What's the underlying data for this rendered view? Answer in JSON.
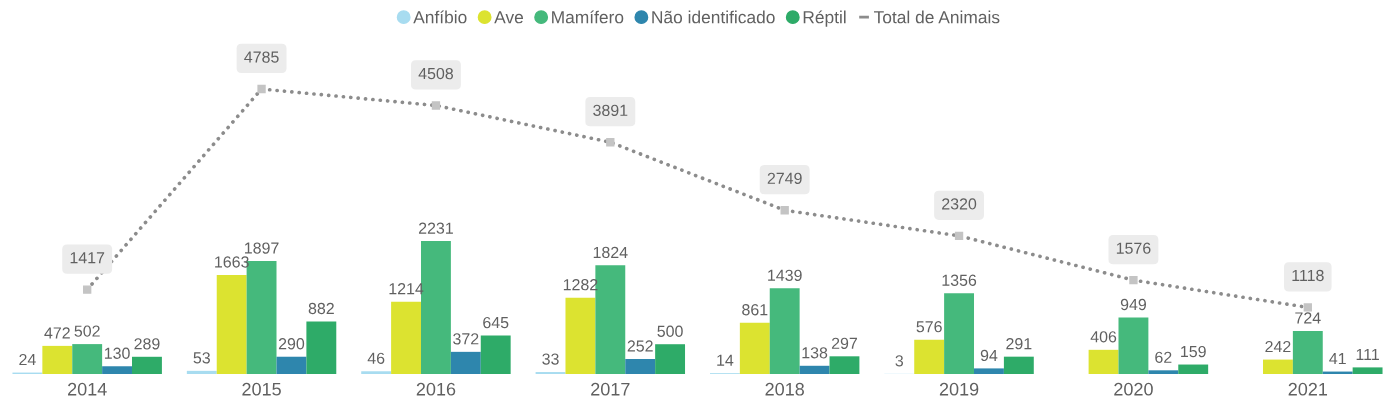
{
  "chart_data": {
    "type": "bar",
    "categories": [
      "2014",
      "2015",
      "2016",
      "2017",
      "2018",
      "2019",
      "2020",
      "2021"
    ],
    "series": [
      {
        "name": "Anfíbio",
        "color": "#a8dcf0",
        "values": [
          24,
          53,
          46,
          33,
          14,
          3,
          null,
          null
        ]
      },
      {
        "name": "Ave",
        "color": "#dce330",
        "values": [
          472,
          1663,
          1214,
          1282,
          861,
          576,
          406,
          242
        ]
      },
      {
        "name": "Mamífero",
        "color": "#45b97c",
        "values": [
          502,
          1897,
          2231,
          1824,
          1439,
          1356,
          949,
          724
        ]
      },
      {
        "name": "Não identificado",
        "color": "#2e86ad",
        "values": [
          130,
          290,
          372,
          252,
          138,
          94,
          62,
          41
        ]
      },
      {
        "name": "Réptil",
        "color": "#2eab68",
        "values": [
          289,
          882,
          645,
          500,
          297,
          291,
          159,
          111
        ]
      },
      {
        "name": "Total de Animais",
        "type": "line",
        "color": "#8c8c8c",
        "line_style": "dotted",
        "marker": "square",
        "values": [
          1417,
          4785,
          4508,
          3891,
          2749,
          2320,
          1576,
          1118
        ]
      }
    ],
    "data_labels": true,
    "legend": "top",
    "grid": false,
    "tick_labels": "x"
  }
}
